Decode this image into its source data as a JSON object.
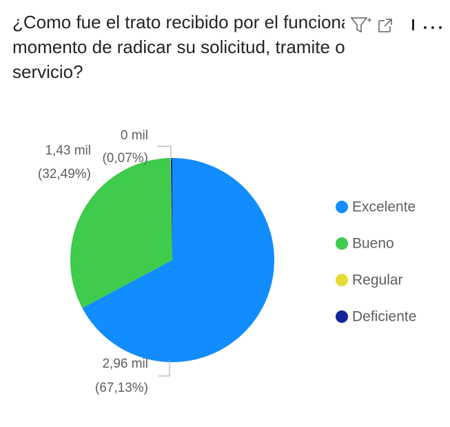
{
  "chart_data": {
    "type": "pie",
    "title": "¿Como fue el trato recibido por el funcionario al momento de radicar su solicitud, tramite o servicio?",
    "categories": [
      "Excelente",
      "Bueno",
      "Regular",
      "Deficiente"
    ],
    "series": [
      {
        "name": "Excelente",
        "color": "#118DFF"
      },
      {
        "name": "Bueno",
        "color": "#3FCB4C"
      },
      {
        "name": "Regular",
        "color": "#E3DD33"
      },
      {
        "name": "Deficiente",
        "color": "#12239E"
      }
    ],
    "values": [
      2.96,
      1.43,
      0.003,
      0.01
    ],
    "value_labels": [
      "2,96 mil",
      "1,43 mil",
      "0 mil",
      null
    ],
    "percent_labels": [
      "(67,13%)",
      "(32,49%)",
      "(0,07%)",
      null
    ],
    "legend": "right"
  }
}
